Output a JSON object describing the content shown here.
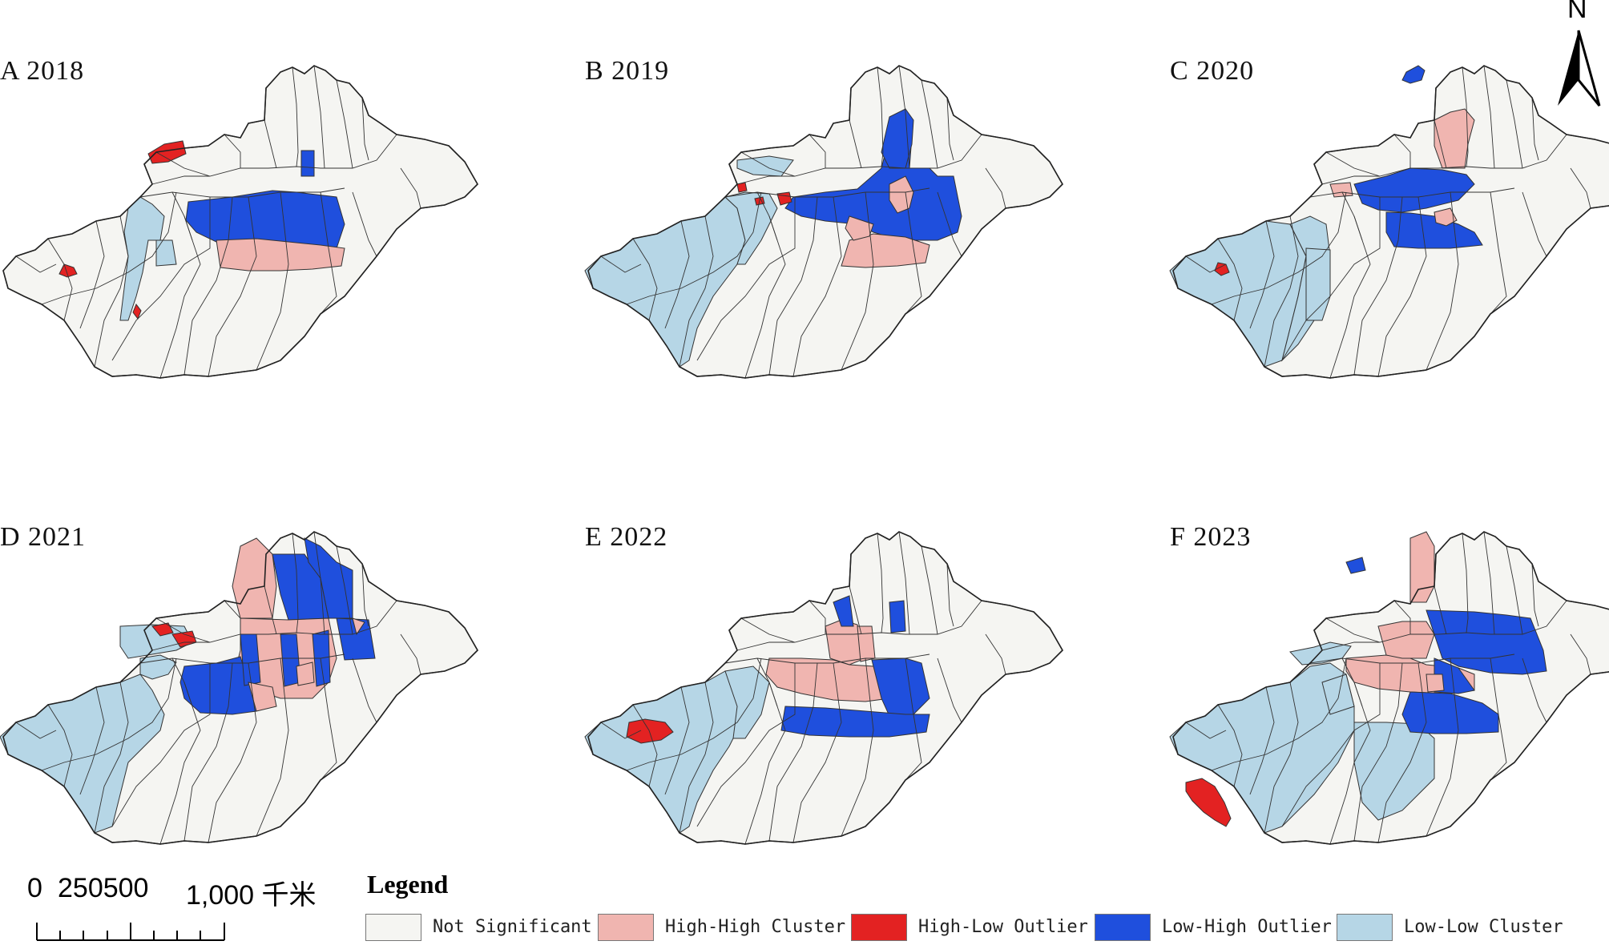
{
  "panels": [
    {
      "title": "A 2018"
    },
    {
      "title": "B 2019"
    },
    {
      "title": "C 2020"
    },
    {
      "title": "D 2021"
    },
    {
      "title": "E 2022"
    },
    {
      "title": "F 2023"
    }
  ],
  "north_arrow": {
    "letter": "N"
  },
  "scale_bar": {
    "labels": [
      "0",
      "250500",
      "1,000 千米"
    ]
  },
  "legend": {
    "title": "Legend",
    "items": [
      {
        "label": "Not Significant",
        "color": "#f5f5f2"
      },
      {
        "label": "High-High Cluster",
        "color": "#f0b5b0"
      },
      {
        "label": "High-Low Outlier",
        "color": "#e32222"
      },
      {
        "label": "Low-High Outlier",
        "color": "#1f4fdd"
      },
      {
        "label": "Low-Low Cluster",
        "color": "#b6d6e6"
      }
    ]
  }
}
